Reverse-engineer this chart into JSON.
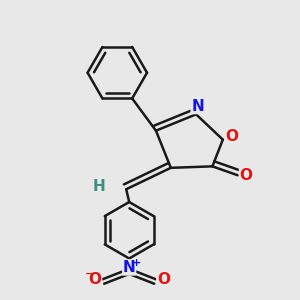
{
  "bg_color": "#e8e8e8",
  "bond_color": "#1a1a1a",
  "bond_width": 1.8,
  "atom_colors": {
    "N_isox": "#1414e0",
    "O_isox": "#e01414",
    "O_carbonyl": "#e01414",
    "N_nitro": "#1414e0",
    "O_nitro1": "#e01414",
    "O_nitro2": "#e01414",
    "H": "#3a9080"
  },
  "fig_width": 3.0,
  "fig_height": 3.0,
  "dpi": 100,
  "xlim": [
    0.0,
    1.0
  ],
  "ylim": [
    0.0,
    1.0
  ]
}
